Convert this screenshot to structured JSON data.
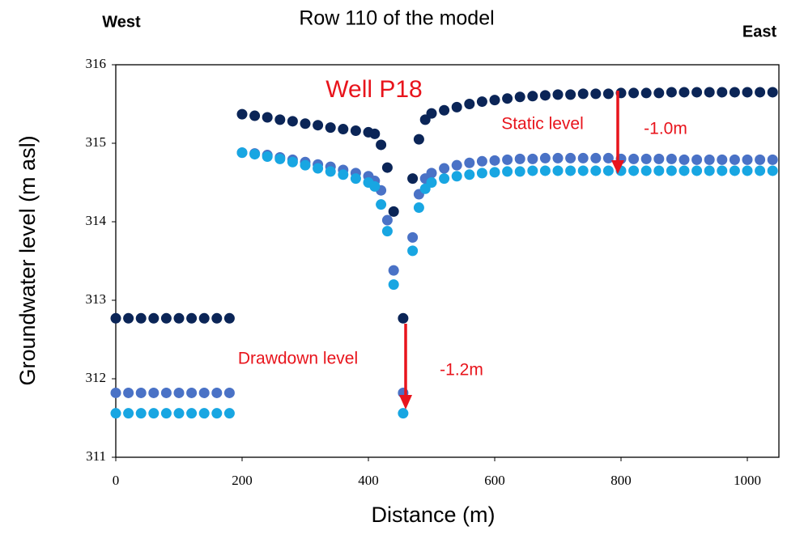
{
  "chart_data": {
    "type": "scatter",
    "title": "Row 110 of the model",
    "west_label": "West",
    "east_label": "East",
    "x_label": "Distance (m)",
    "y_label": "Groundwater level (m asl)",
    "annotations": [
      "Well P18",
      "Static level",
      "-1.0m",
      "Drawdown level",
      "-1.2m"
    ],
    "xlim": [
      0,
      1050
    ],
    "ylim": [
      311,
      316
    ],
    "xticks": [
      0,
      200,
      400,
      600,
      800,
      1000
    ],
    "yticks": [
      311,
      312,
      313,
      314,
      315,
      316
    ],
    "x": [
      0,
      20,
      40,
      60,
      80,
      100,
      120,
      140,
      160,
      180,
      200,
      220,
      240,
      260,
      280,
      300,
      320,
      340,
      360,
      380,
      400,
      410,
      420,
      430,
      440,
      455,
      470,
      480,
      490,
      500,
      520,
      540,
      560,
      580,
      600,
      620,
      640,
      660,
      680,
      700,
      720,
      740,
      760,
      780,
      800,
      820,
      840,
      860,
      880,
      900,
      920,
      940,
      960,
      980,
      1000,
      1020,
      1040
    ],
    "series": [
      {
        "color": "#0b2557",
        "values": [
          312.77,
          312.77,
          312.77,
          312.77,
          312.77,
          312.77,
          312.77,
          312.77,
          312.77,
          312.77,
          315.37,
          315.35,
          315.33,
          315.3,
          315.28,
          315.25,
          315.23,
          315.2,
          315.18,
          315.16,
          315.14,
          315.12,
          314.98,
          314.69,
          314.13,
          312.77,
          314.55,
          315.05,
          315.3,
          315.38,
          315.42,
          315.46,
          315.5,
          315.53,
          315.55,
          315.57,
          315.59,
          315.6,
          315.61,
          315.62,
          315.62,
          315.63,
          315.63,
          315.63,
          315.64,
          315.64,
          315.64,
          315.64,
          315.65,
          315.65,
          315.65,
          315.65,
          315.65,
          315.65,
          315.65,
          315.65,
          315.65
        ]
      },
      {
        "color": "#4a72c6",
        "values": [
          311.82,
          311.82,
          311.82,
          311.82,
          311.82,
          311.82,
          311.82,
          311.82,
          311.82,
          311.82,
          314.88,
          314.87,
          314.85,
          314.82,
          314.79,
          314.76,
          314.73,
          314.7,
          314.66,
          314.62,
          314.58,
          314.52,
          314.4,
          314.02,
          313.38,
          311.82,
          313.8,
          314.35,
          314.55,
          314.62,
          314.68,
          314.72,
          314.75,
          314.77,
          314.78,
          314.79,
          314.8,
          314.8,
          314.81,
          314.81,
          314.81,
          314.81,
          314.81,
          314.81,
          314.8,
          314.8,
          314.8,
          314.8,
          314.8,
          314.79,
          314.79,
          314.79,
          314.79,
          314.79,
          314.79,
          314.79,
          314.79
        ]
      },
      {
        "color": "#18a6e2",
        "values": [
          311.56,
          311.56,
          311.56,
          311.56,
          311.56,
          311.56,
          311.56,
          311.56,
          311.56,
          311.56,
          314.88,
          314.86,
          314.83,
          314.8,
          314.76,
          314.72,
          314.68,
          314.64,
          314.6,
          314.55,
          314.5,
          314.45,
          314.22,
          313.88,
          313.2,
          311.56,
          313.63,
          314.18,
          314.42,
          314.5,
          314.55,
          314.58,
          314.6,
          314.62,
          314.63,
          314.64,
          314.64,
          314.65,
          314.65,
          314.65,
          314.65,
          314.65,
          314.65,
          314.65,
          314.65,
          314.65,
          314.65,
          314.65,
          314.65,
          314.65,
          314.65,
          314.65,
          314.65,
          314.65,
          314.65,
          314.65,
          314.65
        ]
      }
    ]
  }
}
